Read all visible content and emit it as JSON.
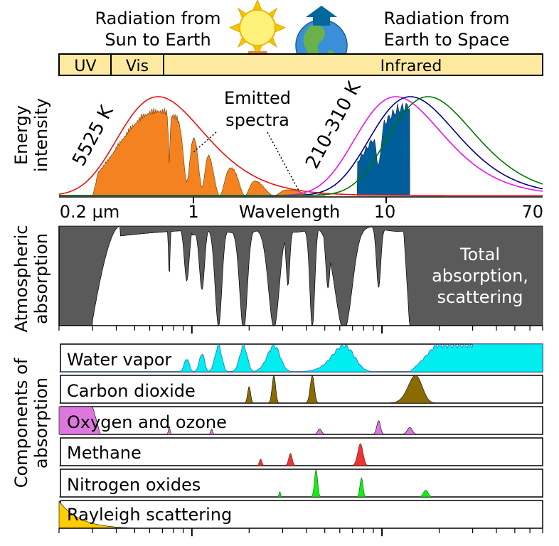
{
  "header": {
    "sun_caption": [
      "Radiation from",
      "Sun to Earth"
    ],
    "earth_caption": [
      "Radiation from",
      "Earth to Space"
    ]
  },
  "bands": {
    "uv": "UV",
    "vis": "Vis",
    "ir": "Infrared"
  },
  "spectrum_panel": {
    "ylabel": [
      "Energy",
      "intensity"
    ],
    "sun_temp": "5525 K",
    "earth_temp": "210-310 K",
    "emitted_label": [
      "Emitted",
      "spectra"
    ],
    "colors": {
      "sun_fill": "#f58220",
      "earth_fill": "#005f9a",
      "sun_curve": "#ee1111",
      "curve_310": "#ee11ee",
      "curve_260": "#000088",
      "curve_210": "#007700"
    }
  },
  "axis": {
    "tick_02": "0.2 µm",
    "tick_1": "1",
    "xlabel": "Wavelength",
    "tick_10": "10",
    "tick_70": "70"
  },
  "absorption_panel": {
    "ylabel": [
      "Atmospheric",
      "absorption"
    ],
    "note": [
      "Total",
      "absorption,",
      "scattering"
    ],
    "fill": "#5a5a5a"
  },
  "components": {
    "ylabel": [
      "Components of",
      "absorption"
    ],
    "rows": [
      {
        "label": "Water vapor",
        "color": "#00eeee"
      },
      {
        "label": "Carbon dioxide",
        "color": "#8b6b00"
      },
      {
        "label": "Oxygen and ozone",
        "color": "#dd77dd"
      },
      {
        "label": "Methane",
        "color": "#ee3333"
      },
      {
        "label": "Nitrogen oxides",
        "color": "#11ee11"
      },
      {
        "label": "Rayleigh scattering",
        "color": "#ffcc00"
      }
    ]
  }
}
